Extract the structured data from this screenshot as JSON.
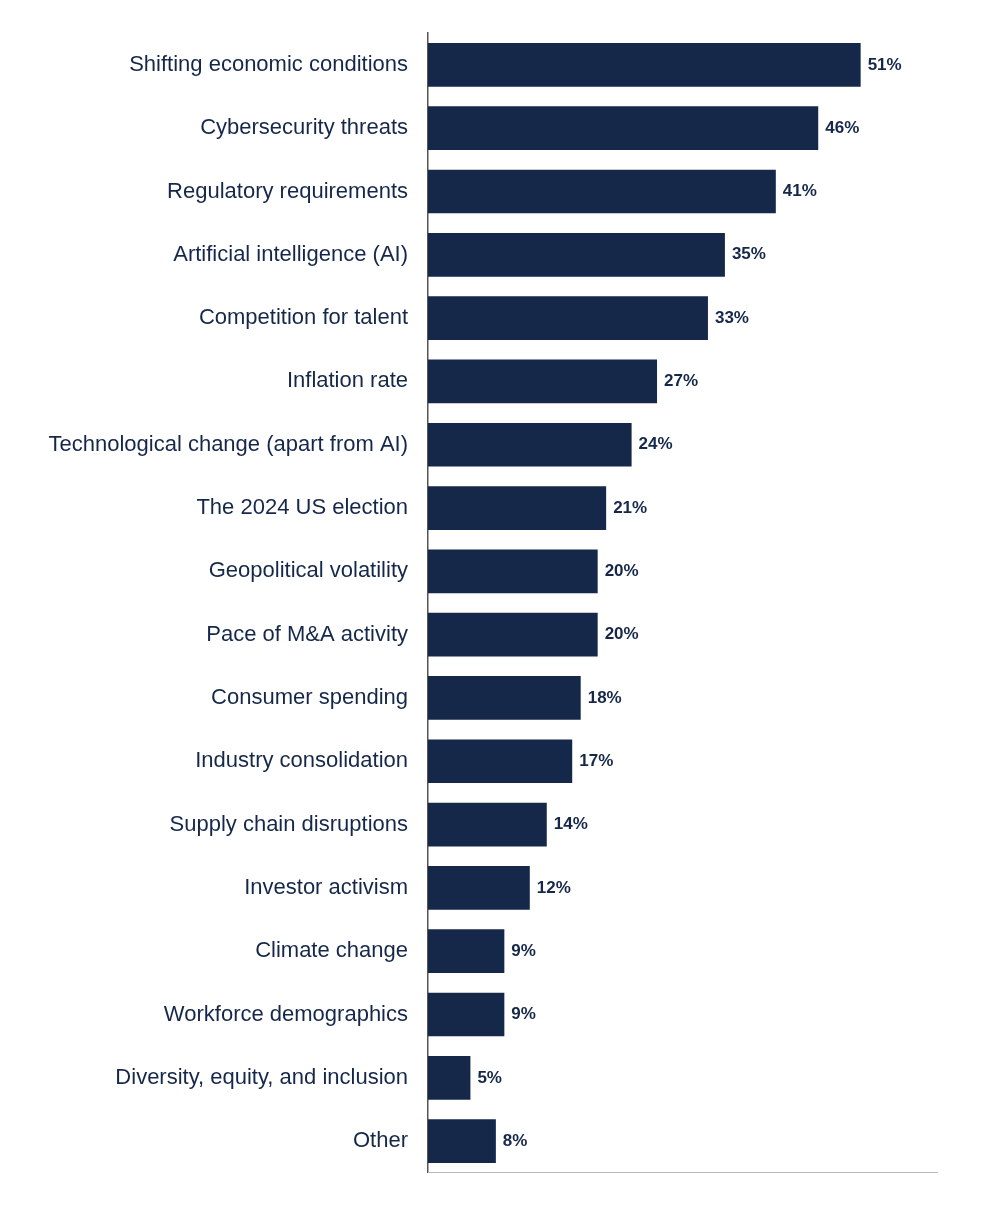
{
  "chart_data": {
    "type": "bar",
    "orientation": "horizontal",
    "categories": [
      "Shifting economic conditions",
      "Cybersecurity threats",
      "Regulatory requirements",
      "Artificial intelligence (AI)",
      "Competition for talent",
      "Inflation rate",
      "Technological change (apart from AI)",
      "The 2024 US election",
      "Geopolitical volatility",
      "Pace of M&A activity",
      "Consumer spending",
      "Industry consolidation",
      "Supply chain disruptions",
      "Investor activism",
      "Climate change",
      "Workforce demographics",
      "Diversity, equity, and inclusion",
      "Other"
    ],
    "values": [
      51,
      46,
      41,
      35,
      33,
      27,
      24,
      21,
      20,
      20,
      18,
      17,
      14,
      12,
      9,
      9,
      5,
      8
    ],
    "value_labels": [
      "51%",
      "46%",
      "41%",
      "35%",
      "33%",
      "27%",
      "24%",
      "21%",
      "20%",
      "20%",
      "18%",
      "17%",
      "14%",
      "12%",
      "9%",
      "9%",
      "5%",
      "8%"
    ],
    "color": "#16284a",
    "xlim": [
      0,
      60
    ],
    "grid": false,
    "data_labels": true,
    "tick_labels": "y"
  }
}
